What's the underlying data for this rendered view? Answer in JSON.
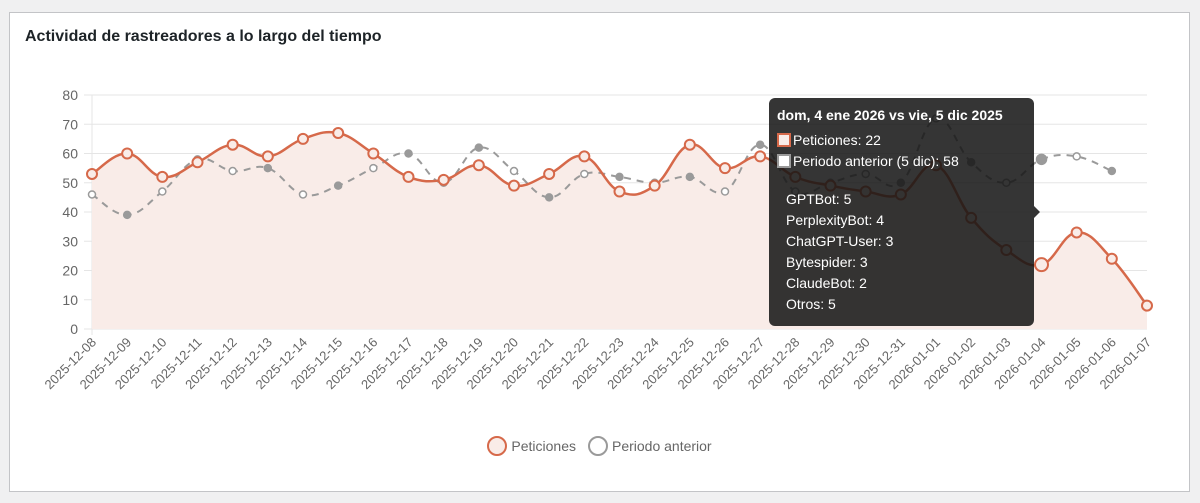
{
  "card": {
    "title": "Actividad de rastreadores a lo largo del tiempo"
  },
  "colors": {
    "current": "#d6694a",
    "current_fill": "#f9ece8",
    "previous": "#9a9a9a",
    "tooltip_bg": "#2b2b2b"
  },
  "legend": {
    "current_label": "Peticiones",
    "previous_label": "Periodo anterior"
  },
  "tooltip": {
    "title": "dom, 4 ene 2026 vs vie, 5 dic 2025",
    "current_line": "Peticiones: 22",
    "previous_line": "Periodo anterior (5 dic): 58",
    "breakdown": [
      "GPTBot: 5",
      "PerplexityBot: 4",
      "ChatGPT-User: 3",
      "Bytespider: 3",
      "ClaudeBot: 2",
      "Otros: 5"
    ]
  },
  "chart_data": {
    "type": "line",
    "title": "Actividad de rastreadores a lo largo del tiempo",
    "xlabel": "",
    "ylabel": "",
    "ylim": [
      0,
      80
    ],
    "yticks": [
      0,
      10,
      20,
      30,
      40,
      50,
      60,
      70,
      80
    ],
    "grid": true,
    "legend_position": "bottom",
    "categories": [
      "2025-12-08",
      "2025-12-09",
      "2025-12-10",
      "2025-12-11",
      "2025-12-12",
      "2025-12-13",
      "2025-12-14",
      "2025-12-15",
      "2025-12-16",
      "2025-12-17",
      "2025-12-18",
      "2025-12-19",
      "2025-12-20",
      "2025-12-21",
      "2025-12-22",
      "2025-12-23",
      "2025-12-24",
      "2025-12-25",
      "2025-12-26",
      "2025-12-27",
      "2025-12-28",
      "2025-12-29",
      "2025-12-30",
      "2025-12-31",
      "2026-01-01",
      "2026-01-02",
      "2026-01-03",
      "2026-01-04",
      "2026-01-05",
      "2026-01-06",
      "2026-01-07"
    ],
    "series": [
      {
        "name": "Peticiones",
        "style": "solid-filled",
        "values": [
          53,
          60,
          52,
          57,
          63,
          59,
          65,
          67,
          60,
          52,
          51,
          56,
          49,
          53,
          59,
          47,
          49,
          63,
          55,
          59,
          52,
          49,
          47,
          46,
          56,
          38,
          27,
          22,
          33,
          24,
          8
        ]
      },
      {
        "name": "Periodo anterior",
        "style": "dashed",
        "values": [
          46,
          39,
          47,
          58,
          54,
          55,
          46,
          49,
          55,
          60,
          50,
          62,
          54,
          45,
          53,
          52,
          50,
          52,
          47,
          63,
          47,
          50,
          53,
          50,
          72,
          57,
          50,
          58,
          59,
          54,
          null
        ]
      }
    ],
    "highlighted_index": 27
  }
}
